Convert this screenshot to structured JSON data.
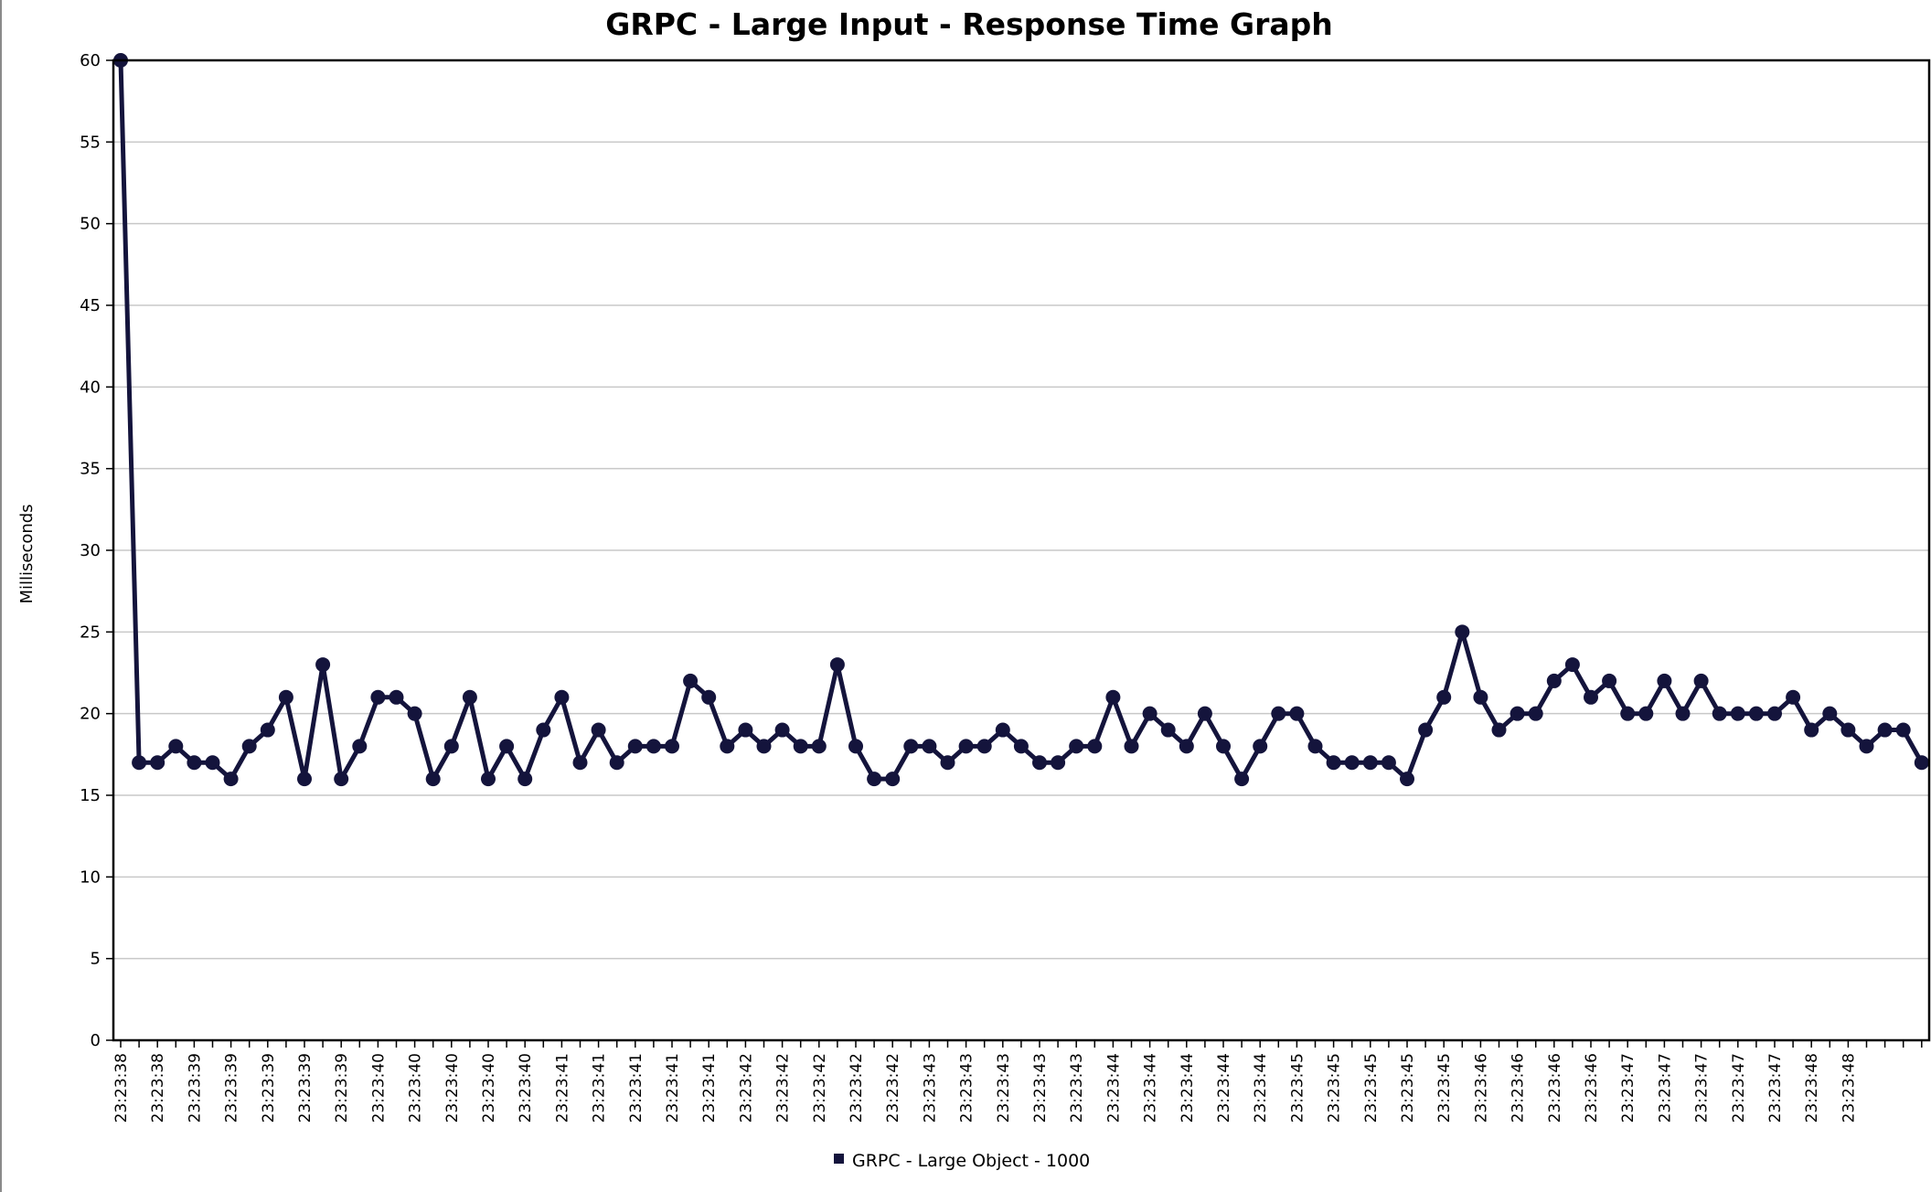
{
  "chart_data": {
    "type": "line",
    "title": "GRPC - Large Input - Response Time Graph",
    "xlabel": "",
    "ylabel": "Milliseconds",
    "ylim": [
      0,
      60
    ],
    "yticks": [
      0,
      5,
      10,
      15,
      20,
      25,
      30,
      35,
      40,
      45,
      50,
      55,
      60
    ],
    "grid": true,
    "legend_position": "bottom",
    "colors": {
      "series": "#14143c",
      "grid": "#c8c8c8",
      "axis": "#000000"
    },
    "x_tick_labels": [
      "23:23:38",
      "23:23:38",
      "23:23:39",
      "23:23:39",
      "23:23:39",
      "23:23:39",
      "23:23:39",
      "23:23:40",
      "23:23:40",
      "23:23:40",
      "23:23:40",
      "23:23:40",
      "23:23:41",
      "23:23:41",
      "23:23:41",
      "23:23:41",
      "23:23:41",
      "23:23:42",
      "23:23:42",
      "23:23:42",
      "23:23:42",
      "23:23:42",
      "23:23:43",
      "23:23:43",
      "23:23:43",
      "23:23:43",
      "23:23:43",
      "23:23:44",
      "23:23:44",
      "23:23:44",
      "23:23:44",
      "23:23:44",
      "23:23:45",
      "23:23:45",
      "23:23:45",
      "23:23:45",
      "23:23:45",
      "23:23:46",
      "23:23:46",
      "23:23:46",
      "23:23:46",
      "23:23:47",
      "23:23:47",
      "23:23:47",
      "23:23:47",
      "23:23:47",
      "23:23:48",
      "23:23:48"
    ],
    "series": [
      {
        "name": "GRPC - Large Object - 1000",
        "values": [
          60,
          17,
          17,
          18,
          17,
          17,
          16,
          18,
          19,
          21,
          16,
          23,
          16,
          18,
          21,
          21,
          20,
          16,
          18,
          21,
          16,
          18,
          16,
          19,
          21,
          17,
          19,
          17,
          18,
          18,
          18,
          22,
          21,
          18,
          19,
          18,
          19,
          18,
          18,
          23,
          18,
          16,
          16,
          18,
          18,
          17,
          18,
          18,
          19,
          18,
          17,
          17,
          18,
          18,
          21,
          18,
          20,
          19,
          18,
          20,
          18,
          16,
          18,
          20,
          20,
          18,
          17,
          17,
          17,
          17,
          16,
          19,
          21,
          25,
          21,
          19,
          20,
          20,
          22,
          23,
          21,
          22,
          20,
          20,
          22,
          20,
          22,
          20,
          20,
          20,
          20,
          21,
          19,
          20,
          19,
          18,
          19,
          19,
          17
        ]
      }
    ]
  }
}
